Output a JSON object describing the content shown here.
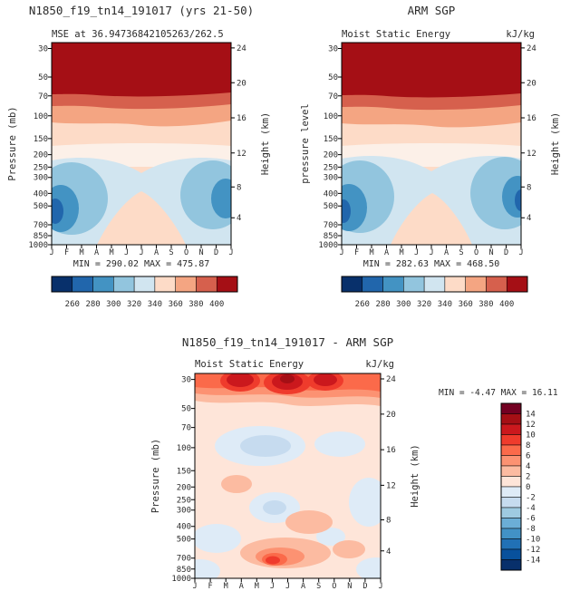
{
  "figure": {
    "background": "#ffffff",
    "text_color": "#2b2b2b"
  },
  "axes": {
    "pressure_label": "Pressure (mb)",
    "pressure_label_obs": "pressure level",
    "height_label": "Height (km)",
    "pressure_ticks": [
      "30",
      "50",
      "70",
      "100",
      "150",
      "200",
      "250",
      "300",
      "400",
      "500",
      "700",
      "850",
      "1000"
    ],
    "height_ticks": [
      "24",
      "20",
      "16",
      "12",
      "8",
      "4"
    ],
    "month_ticks": [
      "J",
      "F",
      "M",
      "A",
      "M",
      "J",
      "J",
      "A",
      "S",
      "O",
      "N",
      "D",
      "J"
    ]
  },
  "plot_model": {
    "title": "N1850_f19_tn14_191017 (yrs 21-50)",
    "subtitle_left": "MSE at 36.94736842105263/262.5",
    "stats": "MIN = 290.02 MAX = 475.87"
  },
  "plot_obs": {
    "title": "ARM SGP",
    "subtitle_left": "Moist Static Energy",
    "units": "kJ/kg",
    "stats": "MIN = 282.63 MAX = 468.50"
  },
  "plot_diff": {
    "title": "N1850_f19_tn14_191017 - ARM SGP",
    "subtitle_left": "Moist Static Energy",
    "units": "kJ/kg",
    "stats": "MIN = -4.47 MAX =  16.11"
  },
  "colorbar_mse": {
    "labels": [
      "260",
      "280",
      "300",
      "320",
      "340",
      "360",
      "380",
      "400"
    ],
    "colors": [
      "#08306b",
      "#2166ac",
      "#4393c3",
      "#92c5de",
      "#d1e5f0",
      "#fddbc7",
      "#f4a582",
      "#d6604d",
      "#a50f15"
    ]
  },
  "colorbar_diff": {
    "labels": [
      "14",
      "12",
      "10",
      "8",
      "6",
      "4",
      "2",
      "0",
      "-2",
      "-4",
      "-6",
      "-8",
      "-10",
      "-12",
      "-14"
    ],
    "colors": [
      "#730022",
      "#a50f15",
      "#cb181d",
      "#ef3b2c",
      "#fb6a4a",
      "#fc9272",
      "#fcbba1",
      "#fee5d9",
      "#deebf7",
      "#c6dbef",
      "#9ecae1",
      "#6baed6",
      "#4292c6",
      "#2171b5",
      "#08519c",
      "#08306b"
    ]
  },
  "chart_data": [
    {
      "type": "contour",
      "title": "N1850_f19_tn14_191017 (yrs 21-50)",
      "subtitle": "MSE at 36.94736842105263/262.5",
      "variable": "Moist Static Energy",
      "units": "kJ/kg",
      "x_ticks": [
        "J",
        "F",
        "M",
        "A",
        "M",
        "J",
        "J",
        "A",
        "S",
        "O",
        "N",
        "D",
        "J"
      ],
      "y_axis": {
        "label": "Pressure (mb)",
        "ticks": [
          30,
          50,
          70,
          100,
          150,
          200,
          250,
          300,
          400,
          500,
          700,
          850,
          1000
        ],
        "scale": "log",
        "inverted": true
      },
      "y2_axis": {
        "label": "Height (km)",
        "ticks": [
          24,
          20,
          16,
          12,
          8,
          4
        ]
      },
      "min": 290.02,
      "max": 475.87,
      "contour_levels": [
        260,
        280,
        300,
        320,
        340,
        360,
        380,
        400
      ],
      "legend_position": "bottom",
      "description": "MSE > 400 kJ/kg (dark red) above ~70 mb, decreasing downward; minima ~290-310 kJ/kg (blue) near 400-700 mb in winter months; pale high-value tongue descends toward the surface in summer."
    },
    {
      "type": "contour",
      "title": "ARM SGP",
      "subtitle": "Moist Static Energy",
      "units": "kJ/kg",
      "x_ticks": [
        "J",
        "F",
        "M",
        "A",
        "M",
        "J",
        "J",
        "A",
        "S",
        "O",
        "N",
        "D",
        "J"
      ],
      "y_axis": {
        "label": "pressure level",
        "ticks": [
          30,
          50,
          70,
          100,
          150,
          200,
          250,
          300,
          400,
          500,
          700,
          850,
          1000
        ],
        "scale": "log",
        "inverted": true
      },
      "y2_axis": {
        "label": "Height (km)",
        "ticks": [
          24,
          20,
          16,
          12,
          8,
          4
        ]
      },
      "min": 282.63,
      "max": 468.5,
      "contour_levels": [
        260,
        280,
        300,
        320,
        340,
        360,
        380,
        400
      ],
      "legend_position": "bottom",
      "description": "Observed ARM SGP moist static energy annual cycle with same structure as model: dark red above 70 mb, blue mid-tropospheric winter minima, pale summer tongue."
    },
    {
      "type": "contour",
      "title": "N1850_f19_tn14_191017 - ARM SGP",
      "subtitle": "Moist Static Energy",
      "units": "kJ/kg",
      "x_ticks": [
        "J",
        "F",
        "M",
        "A",
        "M",
        "J",
        "J",
        "A",
        "S",
        "O",
        "N",
        "D",
        "J"
      ],
      "y_axis": {
        "label": "Pressure (mb)",
        "ticks": [
          30,
          50,
          70,
          100,
          150,
          200,
          250,
          300,
          400,
          500,
          700,
          850,
          1000
        ],
        "scale": "log",
        "inverted": true
      },
      "y2_axis": {
        "label": "Height (km)",
        "ticks": [
          24,
          20,
          16,
          12,
          8,
          4
        ]
      },
      "min": -4.47,
      "max": 16.11,
      "contour_levels": [
        -14,
        -12,
        -10,
        -8,
        -6,
        -4,
        -2,
        0,
        2,
        4,
        6,
        8,
        10,
        12,
        14
      ],
      "legend_position": "right",
      "description": "Model minus observations: mostly within +/-4 kJ/kg; strong positive differences (up to ~16) at the 30 mb top edge and a warm/moist bias spot near 700-850 mb in late spring-summer; weak negative patches in the mid/upper troposphere."
    }
  ]
}
